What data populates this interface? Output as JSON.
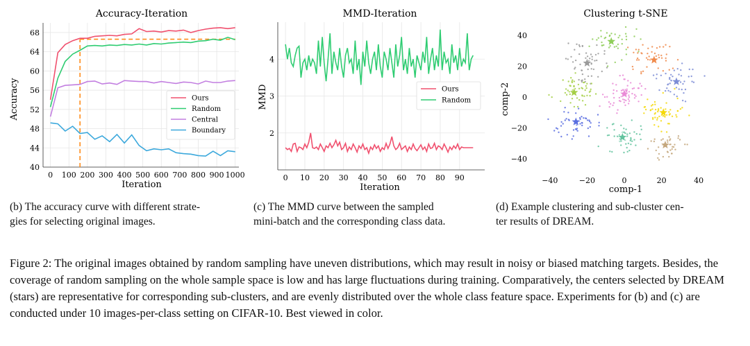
{
  "chart_data": [
    {
      "type": "line",
      "title": "Accuracy-Iteration",
      "xlabel": "Iteration",
      "ylabel": "Accuracy",
      "xlim": [
        -40,
        1020
      ],
      "ylim": [
        40,
        70
      ],
      "xticks": [
        0,
        100,
        200,
        300,
        400,
        500,
        600,
        700,
        800,
        900,
        1000
      ],
      "xtick_labels": [
        "0",
        "100",
        "200",
        "300",
        "400",
        "500",
        "600",
        "700",
        "800",
        "900",
        "1000"
      ],
      "yticks": [
        40,
        44,
        48,
        52,
        56,
        60,
        64,
        68
      ],
      "ytick_labels": [
        "40",
        "44",
        "48",
        "52",
        "56",
        "60",
        "64",
        "68"
      ],
      "legend_position": "center-right",
      "annotation": {
        "vline_x": 160,
        "hline_y": 66.6,
        "color": "#ff8c1a",
        "style": "dashed"
      },
      "x": [
        0,
        40,
        80,
        120,
        160,
        200,
        240,
        280,
        320,
        360,
        400,
        440,
        480,
        520,
        560,
        600,
        640,
        680,
        720,
        760,
        800,
        840,
        880,
        920,
        960,
        1000
      ],
      "series": [
        {
          "name": "Ours",
          "color": "#f0506e",
          "values": [
            54.0,
            63.8,
            65.5,
            66.3,
            66.8,
            66.8,
            67.2,
            67.3,
            67.4,
            67.3,
            67.6,
            67.7,
            68.8,
            68.2,
            68.3,
            68.1,
            68.4,
            68.3,
            68.5,
            68.0,
            68.4,
            68.7,
            68.9,
            69.0,
            68.8,
            69.0
          ]
        },
        {
          "name": "Random",
          "color": "#2ecc71",
          "values": [
            52.5,
            58.5,
            62.0,
            63.5,
            64.3,
            65.2,
            65.3,
            65.2,
            65.4,
            65.3,
            65.5,
            65.4,
            65.6,
            65.4,
            65.7,
            65.6,
            65.8,
            65.9,
            66.0,
            65.9,
            66.2,
            66.3,
            66.6,
            66.4,
            67.0,
            66.5
          ]
        },
        {
          "name": "Central",
          "color": "#c27ee0",
          "values": [
            50.5,
            56.5,
            57.0,
            57.1,
            57.2,
            57.8,
            57.9,
            57.3,
            57.5,
            57.2,
            58.0,
            57.9,
            57.8,
            57.8,
            57.5,
            57.8,
            57.6,
            57.4,
            57.7,
            57.6,
            57.3,
            57.9,
            57.6,
            57.6,
            57.9,
            58.0
          ]
        },
        {
          "name": "Boundary",
          "color": "#3ba8dc",
          "values": [
            49.2,
            49.0,
            47.5,
            48.5,
            47.0,
            47.2,
            45.8,
            46.5,
            45.3,
            46.8,
            45.0,
            46.7,
            44.5,
            43.4,
            43.8,
            43.6,
            43.8,
            43.0,
            42.8,
            42.7,
            42.4,
            42.3,
            43.3,
            42.4,
            43.4,
            43.2
          ]
        }
      ]
    },
    {
      "type": "line",
      "title": "MMD-Iteration",
      "xlabel": "Iteration",
      "ylabel": "MMD",
      "xlim": [
        -4,
        103
      ],
      "ylim": [
        1.0,
        5.0
      ],
      "xticks": [
        0,
        10,
        20,
        30,
        40,
        50,
        60,
        70,
        80,
        90
      ],
      "xtick_labels": [
        "0",
        "10",
        "20",
        "30",
        "40",
        "50",
        "60",
        "70",
        "80",
        "90"
      ],
      "yticks": [
        2,
        3,
        4
      ],
      "ytick_labels": [
        "2",
        "3",
        "4"
      ],
      "legend_position": "center-right",
      "series": [
        {
          "name": "Ours",
          "color": "#f0506e",
          "values": [
            1.6,
            1.55,
            1.58,
            1.5,
            1.7,
            1.72,
            1.5,
            1.62,
            1.6,
            1.55,
            1.7,
            1.6,
            1.75,
            2.0,
            1.6,
            1.58,
            1.62,
            1.55,
            1.7,
            1.6,
            1.5,
            1.65,
            1.6,
            1.72,
            1.6,
            1.68,
            1.8,
            1.65,
            1.75,
            1.55,
            1.6,
            1.72,
            1.5,
            1.62,
            1.55,
            1.7,
            1.6,
            1.48,
            1.65,
            1.58,
            1.7,
            1.55,
            1.6,
            1.45,
            1.62,
            1.55,
            1.68,
            1.58,
            1.65,
            1.5,
            1.6,
            1.55,
            1.72,
            1.58,
            1.7,
            1.9,
            1.65,
            1.55,
            1.6,
            1.72,
            1.55,
            1.6,
            1.65,
            1.5,
            1.62,
            1.55,
            1.7,
            1.58,
            1.52,
            1.6,
            1.68,
            1.55,
            1.62,
            1.5,
            1.7,
            1.58,
            1.6,
            1.72,
            1.55,
            1.65,
            1.62,
            1.55,
            1.7,
            1.6,
            1.48,
            1.62,
            1.55,
            1.65,
            1.58,
            1.7,
            1.55,
            1.62,
            1.6,
            1.6,
            1.6,
            1.6,
            1.6,
            1.6
          ]
        },
        {
          "name": "Random",
          "color": "#2ecc71",
          "values": [
            4.4,
            4.0,
            4.3,
            3.9,
            3.8,
            4.1,
            4.3,
            4.35,
            3.5,
            3.9,
            4.0,
            3.7,
            4.1,
            3.8,
            4.0,
            3.9,
            3.6,
            4.5,
            3.8,
            4.6,
            3.9,
            3.4,
            4.0,
            4.7,
            3.6,
            4.2,
            3.9,
            3.7,
            4.3,
            3.8,
            3.5,
            4.1,
            4.3,
            3.9,
            4.0,
            3.6,
            4.5,
            3.7,
            4.0,
            3.3,
            4.2,
            3.8,
            4.5,
            3.9,
            3.6,
            4.0,
            4.2,
            3.7,
            4.4,
            3.8,
            3.5,
            4.2,
            4.0,
            3.7,
            4.3,
            3.9,
            3.5,
            4.4,
            3.8,
            4.1,
            4.6,
            3.7,
            4.0,
            3.6,
            4.3,
            3.8,
            4.0,
            3.5,
            4.1,
            3.9,
            3.7,
            4.2,
            3.9,
            4.6,
            3.6,
            4.0,
            4.3,
            3.7,
            4.1,
            3.8,
            4.8,
            3.7,
            4.2,
            3.9,
            4.0,
            3.6,
            4.4,
            3.9,
            4.1,
            3.7,
            4.3,
            3.8,
            4.0,
            3.9,
            4.7,
            3.7,
            4.0,
            4.1
          ]
        }
      ]
    },
    {
      "type": "scatter",
      "title": "Clustering t-SNE",
      "xlabel": "comp-1",
      "ylabel": "comp-2",
      "xlim": [
        -50,
        50
      ],
      "ylim": [
        -48,
        48
      ],
      "xticks": [
        -40,
        -20,
        0,
        20,
        40
      ],
      "xtick_labels": [
        "−40",
        "−20",
        "0",
        "20",
        "40"
      ],
      "yticks": [
        -40,
        -20,
        0,
        20,
        40
      ],
      "yticks_labels_note": "tick labels in ytick_labels",
      "ytick_labels": [
        "−40",
        "−20",
        "0",
        "20",
        "40"
      ],
      "clusters": [
        {
          "name": "c1",
          "color": "#8fce5a",
          "center": [
            -7,
            36
          ],
          "count": 45
        },
        {
          "name": "c2",
          "color": "#f08a4b",
          "center": [
            16,
            24
          ],
          "count": 45
        },
        {
          "name": "c3",
          "color": "#9a9a9a",
          "center": [
            -20,
            22
          ],
          "count": 55
        },
        {
          "name": "c4",
          "color": "#7b8cd6",
          "center": [
            28,
            10
          ],
          "count": 45
        },
        {
          "name": "c5",
          "color": "#a5cf45",
          "center": [
            -27,
            3
          ],
          "count": 55
        },
        {
          "name": "c6",
          "color": "#e98ad6",
          "center": [
            0,
            2
          ],
          "count": 65
        },
        {
          "name": "c7",
          "color": "#f5d90a",
          "center": [
            21,
            -10
          ],
          "count": 55
        },
        {
          "name": "c8",
          "color": "#5a6fe0",
          "center": [
            -26,
            -16
          ],
          "count": 50
        },
        {
          "name": "c9",
          "color": "#62c39e",
          "center": [
            -1,
            -26
          ],
          "count": 50
        },
        {
          "name": "c10",
          "color": "#c4a77d",
          "center": [
            22,
            -31
          ],
          "count": 40
        }
      ]
    }
  ],
  "subcaptions": {
    "b_line1": "(b) The accuracy curve with different strate-",
    "b_line2": "gies for selecting original images.",
    "c_line1": "(c) The MMD curve between the sampled",
    "c_line2": "mini-batch and the corresponding class data.",
    "d_line1": "(d) Example clustering and sub-cluster cen-",
    "d_line2": "ter results of DREAM."
  },
  "caption": "Figure 2: The original images obtained by random sampling have uneven distributions, which may result in noisy or biased matching targets. Besides, the coverage of random sampling on the whole sample space is low and has large fluctuations during training. Comparatively, the centers selected by DREAM (stars) are representative for corresponding sub-clusters, and are evenly distributed over the whole class feature space. Experiments for (b) and (c) are conducted under 10 images-per-class setting on CIFAR-10. Best viewed in color."
}
